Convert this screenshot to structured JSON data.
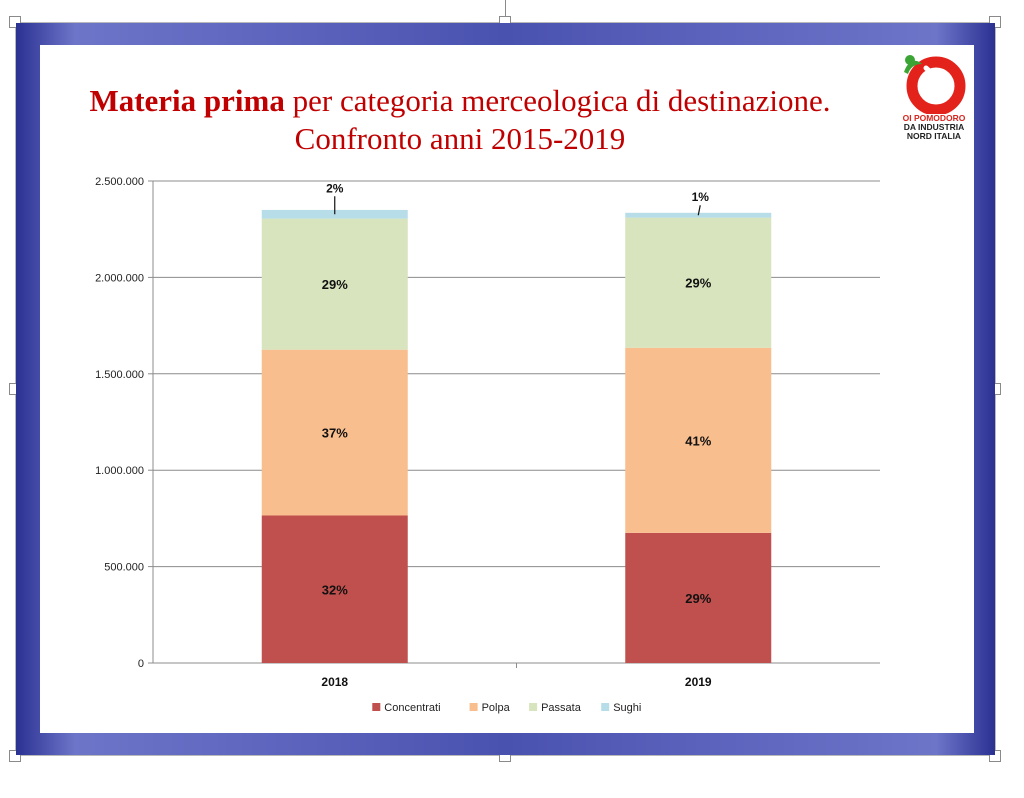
{
  "title": {
    "line1_bold": "Materia prima",
    "line1_rest": " per categoria merceologica di destinazione.",
    "line2": "Confronto anni 2015-2019"
  },
  "logo": {
    "line1_a": "OI",
    "line1_b": "POMODORO",
    "line2": "DA INDUSTRIA",
    "line3": "NORD ITALIA",
    "colors": {
      "red": "#e3231b",
      "green": "#3aa535"
    }
  },
  "chart_data": {
    "type": "bar",
    "stacked": true,
    "categories": [
      "2018",
      "2019"
    ],
    "series": [
      {
        "name": "Concentrati",
        "color": "#c0504d",
        "values": [
          765000,
          675000
        ],
        "labels": [
          "32%",
          "29%"
        ]
      },
      {
        "name": "Polpa",
        "color": "#f9be8e",
        "values": [
          860000,
          960000
        ],
        "labels": [
          "37%",
          "41%"
        ]
      },
      {
        "name": "Passata",
        "color": "#d7e4bd",
        "values": [
          680000,
          675000
        ],
        "labels": [
          "29%",
          "29%"
        ]
      },
      {
        "name": "Sughi",
        "color": "#b7dde8",
        "values": [
          45000,
          25000
        ],
        "labels": [
          "2%",
          "1%"
        ]
      }
    ],
    "ylim": [
      0,
      2500000
    ],
    "yticks": [
      {
        "value": 0,
        "label": "0"
      },
      {
        "value": 500000,
        "label": "500.000"
      },
      {
        "value": 1000000,
        "label": "1.000.000"
      },
      {
        "value": 1500000,
        "label": "1.500.000"
      },
      {
        "value": 2000000,
        "label": "2.000.000"
      },
      {
        "value": 2500000,
        "label": "2.500.000"
      }
    ],
    "grid": true,
    "legend_position": "bottom"
  }
}
